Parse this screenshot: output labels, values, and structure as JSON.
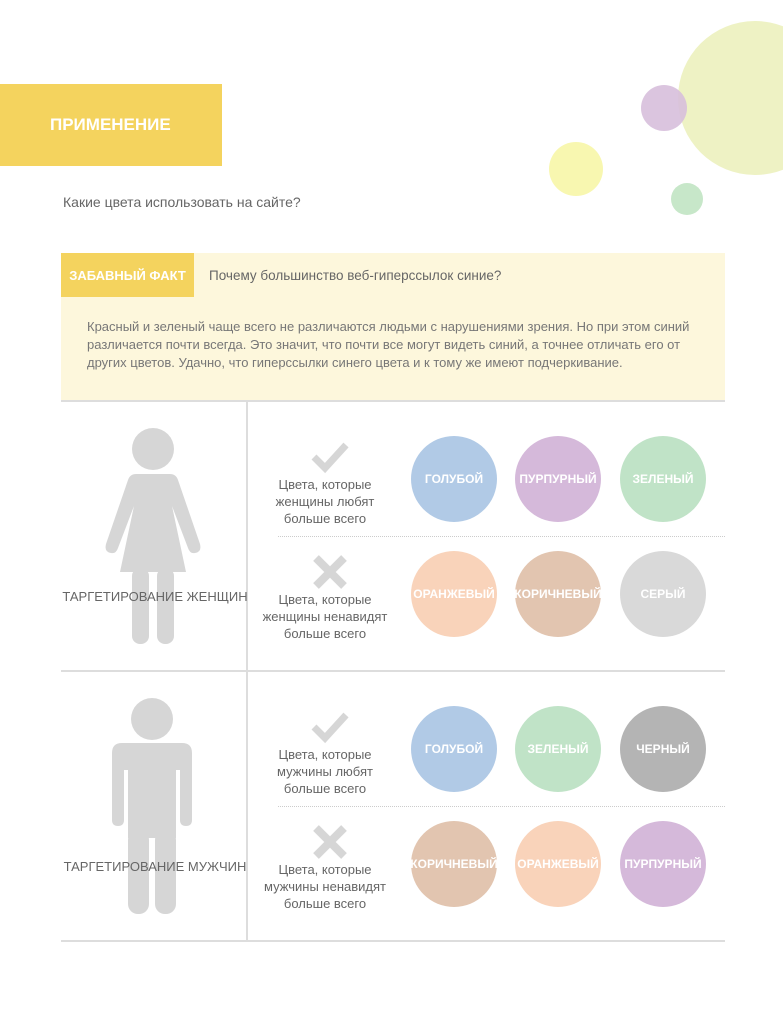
{
  "header": {
    "title": "ПРИМЕНЕНИЕ",
    "question": "Какие цвета использовать на сайте?"
  },
  "fact": {
    "tag": "ЗАБАВНЫЙ ФАКТ",
    "question": "Почему большинство веб-гиперссылок синие?",
    "body": "Красный и зеленый чаще всего не различаются людьми с нарушениями зрения. Но при этом синий различается почти всегда. Это значит, что почти все могут видеть синий, а точнее отличать его от других цветов. Удачно, что гиперссылки синего цвета и к тому же имеют подчеркивание."
  },
  "women": {
    "target": "ТАРГЕТИРОВАНИЕ ЖЕНЩИН",
    "like": {
      "icon": "check-icon",
      "label": "Цвета, которые женщины любят больше всего",
      "colors": [
        {
          "name": "ГОЛУБОЙ",
          "hex": "#b1cae6"
        },
        {
          "name": "ПУРПУРНЫЙ",
          "hex": "#d5b9da"
        },
        {
          "name": "ЗЕЛЕНЫЙ",
          "hex": "#c0e3c7"
        }
      ]
    },
    "hate": {
      "icon": "cross-icon",
      "label": "Цвета, которые женщины ненавидят больше всего",
      "colors": [
        {
          "name": "ОРАНЖЕВЫЙ",
          "hex": "#f9d3ba"
        },
        {
          "name": "КОРИЧНЕВЫЙ",
          "hex": "#e2c5b0"
        },
        {
          "name": "СЕРЫЙ",
          "hex": "#d9d9d9"
        }
      ]
    }
  },
  "men": {
    "target": "ТАРГЕТИРОВАНИЕ МУЖЧИН",
    "like": {
      "icon": "check-icon",
      "label": "Цвета, которые мужчины любят больше всего",
      "colors": [
        {
          "name": "ГОЛУБОЙ",
          "hex": "#b1cae6"
        },
        {
          "name": "ЗЕЛЕНЫЙ",
          "hex": "#c0e3c7"
        },
        {
          "name": "ЧЕРНЫЙ",
          "hex": "#b4b4b4"
        }
      ]
    },
    "hate": {
      "icon": "cross-icon",
      "label": "Цвета, которые мужчины ненавидят больше всего",
      "colors": [
        {
          "name": "КОРИЧНЕВЫЙ",
          "hex": "#e2c5b0"
        },
        {
          "name": "ОРАНЖЕВЫЙ",
          "hex": "#f9d3ba"
        },
        {
          "name": "ПУРПУРНЫЙ",
          "hex": "#d5b9da"
        }
      ]
    }
  },
  "colors": {
    "accent": "#f4d35e",
    "fact_bg": "#fdf7dc"
  }
}
